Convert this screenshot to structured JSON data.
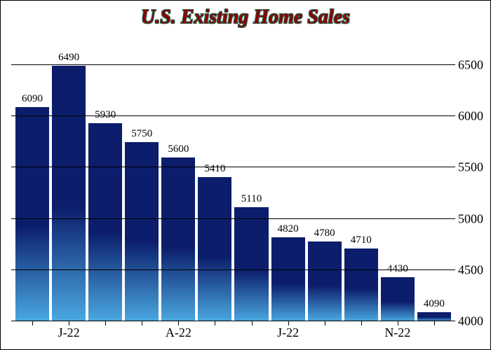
{
  "chart": {
    "type": "bar",
    "title": "U.S. Existing Home Sales",
    "title_fontsize": 28,
    "title_color": "#8b0000",
    "title_outline_color": "#2a6855",
    "background_color": "#ffffff",
    "grid_color": "#000000",
    "bar_gradient_top": "#0b1d6b",
    "bar_gradient_bottom": "#4aa8e0",
    "ylim": [
      4000,
      6800
    ],
    "yticks": [
      4000,
      4500,
      5000,
      5500,
      6000,
      6500
    ],
    "ylabel_fontsize": 18,
    "xlabel_fontsize": 18,
    "barlabel_fontsize": 15,
    "bar_gap": 4,
    "categories": [
      "",
      "J-22",
      "",
      "",
      "A-22",
      "",
      "",
      "J-22",
      "",
      "",
      "N-22",
      ""
    ],
    "values": [
      6090,
      6490,
      5930,
      5750,
      5600,
      5410,
      5110,
      4820,
      4780,
      4710,
      4430,
      4090
    ],
    "value_labels": [
      "6090",
      "6490",
      "5930",
      "5750",
      "5600",
      "5410",
      "5110",
      "4820",
      "4780",
      "4710",
      "4430",
      "4090"
    ]
  }
}
